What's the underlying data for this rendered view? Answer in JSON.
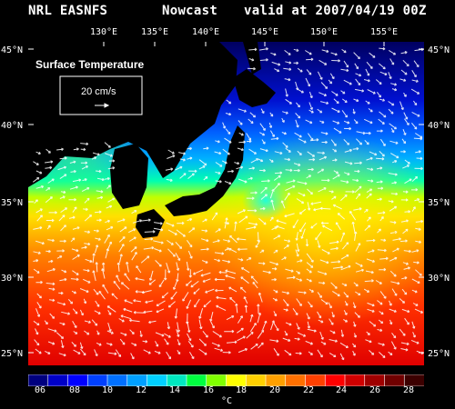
{
  "header": {
    "left": "NRL EASNFS",
    "middle": "Nowcast",
    "right": "valid at 2007/04/19 00Z"
  },
  "map": {
    "field": "Surface Temperature",
    "reference_vector_label": "20 cm/s",
    "longitude_labels": [
      "130°E",
      "135°E",
      "140°E",
      "145°E",
      "150°E",
      "155°E"
    ],
    "latitude_labels_left": [
      "45°N",
      "40°N",
      "35°N",
      "30°N",
      "25°N"
    ],
    "latitude_labels_right": [
      "45°N",
      "40°N",
      "35°N",
      "30°N",
      "25°N"
    ],
    "land_color": "#000000",
    "background": "#000000",
    "vector_color": "#ffffff"
  },
  "colorbar": {
    "colors": [
      "#00007f",
      "#0000c8",
      "#0000ff",
      "#0040ff",
      "#0070ff",
      "#00a0ff",
      "#00d0ff",
      "#00e8c0",
      "#00ff40",
      "#80ff00",
      "#ffff00",
      "#ffd000",
      "#ffa000",
      "#ff7000",
      "#ff4000",
      "#ff0000",
      "#d00000",
      "#a00000",
      "#700000",
      "#3c0000"
    ],
    "tick_labels": [
      "06",
      "08",
      "10",
      "12",
      "14",
      "16",
      "18",
      "20",
      "22",
      "24",
      "26",
      "28"
    ],
    "unit": "°C"
  }
}
